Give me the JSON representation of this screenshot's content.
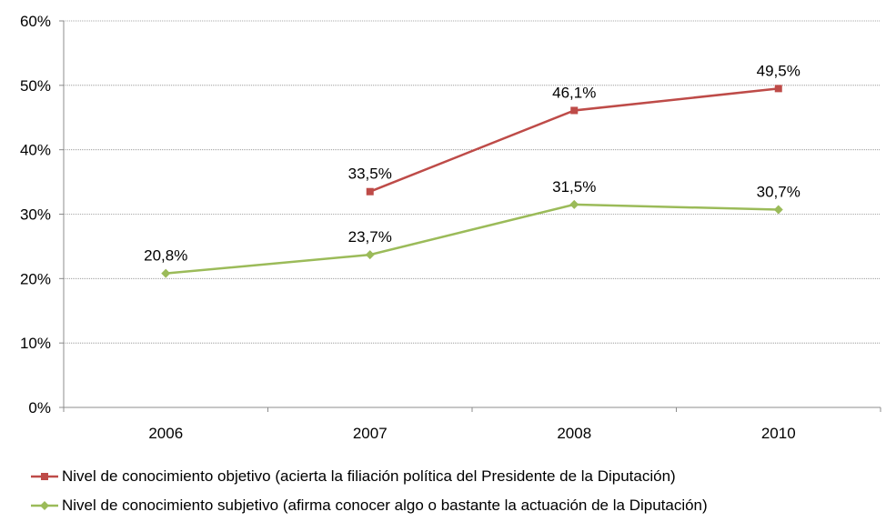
{
  "chart_data": {
    "type": "line",
    "categories": [
      "2006",
      "2007",
      "2008",
      "2010"
    ],
    "ylim": [
      0,
      60
    ],
    "yticks": [
      "0%",
      "10%",
      "20%",
      "30%",
      "40%",
      "50%",
      "60%"
    ],
    "grid": true,
    "legend_position": "bottom",
    "series": [
      {
        "name": "Nivel de conocimiento objetivo (acierta la filiación política del Presidente de la Diputación)",
        "color": "#be4b48",
        "marker": "square",
        "values": [
          null,
          33.5,
          46.1,
          49.5
        ],
        "labels": [
          "",
          "33,5%",
          "46,1%",
          "49,5%"
        ]
      },
      {
        "name": "Nivel de conocimiento subjetivo (afirma conocer algo o bastante la actuación de la Diputación)",
        "color": "#9bbb59",
        "marker": "diamond",
        "values": [
          20.8,
          23.7,
          31.5,
          30.7
        ],
        "labels": [
          "20,8%",
          "23,7%",
          "31,5%",
          "30,7%"
        ]
      }
    ]
  }
}
